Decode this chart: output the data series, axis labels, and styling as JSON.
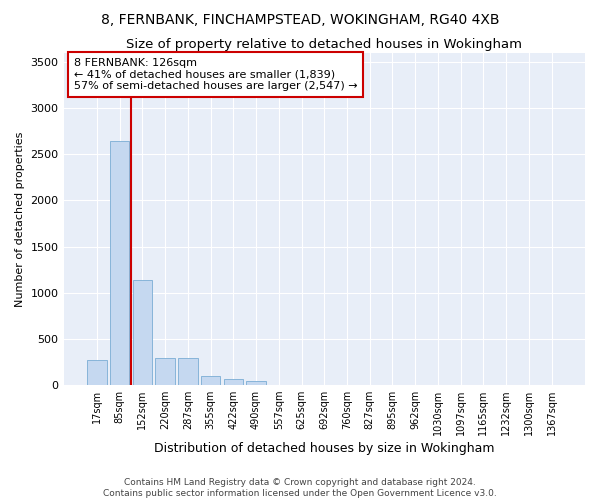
{
  "title_line1": "8, FERNBANK, FINCHAMPSTEAD, WOKINGHAM, RG40 4XB",
  "title_line2": "Size of property relative to detached houses in Wokingham",
  "xlabel": "Distribution of detached houses by size in Wokingham",
  "ylabel": "Number of detached properties",
  "bar_color": "#c5d8f0",
  "bar_edge_color": "#7aadd4",
  "background_color": "#e8eef8",
  "grid_color": "#ffffff",
  "categories": [
    "17sqm",
    "85sqm",
    "152sqm",
    "220sqm",
    "287sqm",
    "355sqm",
    "422sqm",
    "490sqm",
    "557sqm",
    "625sqm",
    "692sqm",
    "760sqm",
    "827sqm",
    "895sqm",
    "962sqm",
    "1030sqm",
    "1097sqm",
    "1165sqm",
    "1232sqm",
    "1300sqm",
    "1367sqm"
  ],
  "values": [
    270,
    2650,
    1140,
    290,
    285,
    95,
    60,
    35,
    0,
    0,
    0,
    0,
    0,
    0,
    0,
    0,
    0,
    0,
    0,
    0,
    0
  ],
  "ylim": [
    0,
    3600
  ],
  "yticks": [
    0,
    500,
    1000,
    1500,
    2000,
    2500,
    3000,
    3500
  ],
  "red_line_x": 1.5,
  "annotation_line1": "8 FERNBANK: 126sqm",
  "annotation_line2": "← 41% of detached houses are smaller (1,839)",
  "annotation_line3": "57% of semi-detached houses are larger (2,547) →",
  "annotation_box_color": "#ffffff",
  "annotation_edge_color": "#cc0000",
  "footer_line1": "Contains HM Land Registry data © Crown copyright and database right 2024.",
  "footer_line2": "Contains public sector information licensed under the Open Government Licence v3.0."
}
